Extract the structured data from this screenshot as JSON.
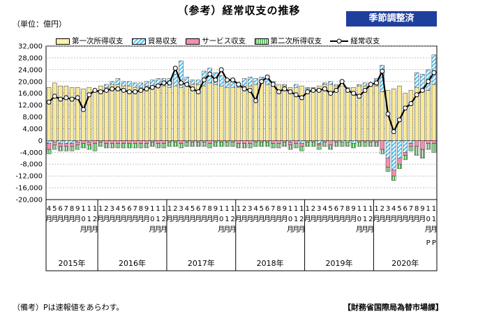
{
  "header": {
    "title": "（参考）経常収支の推移",
    "badge": "季節調整済",
    "unit": "（単位：億円）"
  },
  "footer": {
    "note": "（備考）Pは速報値をあらわす。",
    "source": "【財務省国際局為替市場課】"
  },
  "colors": {
    "primary_income": "#fff2a8",
    "trade": "#4fc3f7",
    "services": "#f48fb1",
    "secondary_income": "#66bb6a",
    "current_account": "#000000",
    "badge": "#1f3f9f"
  },
  "chart_data": {
    "type": "bar",
    "stacked": true,
    "title": "（参考）経常収支の推移",
    "ylabel": "（単位：億円）",
    "ylim": [
      -20000,
      32000
    ],
    "yticks": [
      32000,
      28000,
      24000,
      20000,
      16000,
      12000,
      8000,
      4000,
      0,
      -4000,
      -8000,
      -12000,
      -16000,
      -20000
    ],
    "ytick_labels": [
      "32,000",
      "28,000",
      "24,000",
      "20,000",
      "16,000",
      "12,000",
      "8,000",
      "4,000",
      "0",
      "-4,000",
      "-8,000",
      "-12,000",
      "-16,000",
      "-20,000"
    ],
    "grid": true,
    "legend_position": "top",
    "years": [
      {
        "label": "2015年",
        "months": [
          "4月",
          "5月",
          "6月",
          "7月",
          "8月",
          "9月",
          "10月",
          "11月",
          "12月"
        ]
      },
      {
        "label": "2016年",
        "months": [
          "1月",
          "2月",
          "3月",
          "4月",
          "5月",
          "6月",
          "7月",
          "8月",
          "9月",
          "10月",
          "11月",
          "12月"
        ]
      },
      {
        "label": "2017年",
        "months": [
          "1月",
          "2月",
          "3月",
          "4月",
          "5月",
          "6月",
          "7月",
          "8月",
          "9月",
          "10月",
          "11月",
          "12月"
        ]
      },
      {
        "label": "2018年",
        "months": [
          "1月",
          "2月",
          "3月",
          "4月",
          "5月",
          "6月",
          "7月",
          "8月",
          "9月",
          "10月",
          "11月",
          "12月"
        ]
      },
      {
        "label": "2019年",
        "months": [
          "1月",
          "2月",
          "3月",
          "4月",
          "5月",
          "6月",
          "7月",
          "8月",
          "9月",
          "10月",
          "11月",
          "12月"
        ]
      },
      {
        "label": "2020年",
        "months": [
          "1月",
          "2月",
          "3月",
          "4月",
          "5月",
          "6月",
          "7月",
          "8月",
          "9月",
          "10月",
          "11月"
        ]
      }
    ],
    "preliminary_marks": [
      "P",
      "P"
    ],
    "series": [
      {
        "name": "第一次所得収支",
        "key": "primary",
        "values": [
          18000,
          19500,
          18500,
          18500,
          18000,
          18000,
          17500,
          18000,
          16500,
          18500,
          18000,
          19000,
          19000,
          18500,
          18500,
          18000,
          18000,
          18500,
          18500,
          19000,
          18500,
          18000,
          18500,
          18000,
          18500,
          19000,
          19000,
          18500,
          19500,
          19000,
          18500,
          18000,
          18000,
          18000,
          18500,
          18500,
          19000,
          19500,
          19000,
          18500,
          19000,
          18500,
          18000,
          18000,
          18500,
          17500,
          18000,
          18500,
          19000,
          19000,
          18500,
          18500,
          18000,
          18000,
          18500,
          18500,
          18500,
          18500,
          16500,
          17000,
          17500,
          18500,
          16000,
          17000,
          18000,
          17500,
          17000,
          19000
        ]
      },
      {
        "name": "貿易収支",
        "key": "trade",
        "values": [
          -1000,
          -500,
          -1000,
          -1000,
          -1000,
          -500,
          0,
          -500,
          500,
          0,
          1000,
          1000,
          2000,
          1500,
          1500,
          1500,
          1500,
          1500,
          2000,
          2000,
          2500,
          3000,
          4000,
          9000,
          3000,
          1500,
          1500,
          5000,
          5000,
          4000,
          3500,
          2500,
          3000,
          1500,
          2500,
          3000,
          2000,
          2000,
          3000,
          1500,
          0,
          500,
          -500,
          1000,
          -1000,
          500,
          0,
          -1000,
          500,
          1000,
          500,
          -500,
          -500,
          -1000,
          500,
          1000,
          1000,
          2500,
          9000,
          -6000,
          -10000,
          -6000,
          -4000,
          -1000,
          5000,
          5000,
          7000,
          10000
        ]
      },
      {
        "name": "サービス収支",
        "key": "services",
        "values": [
          -2000,
          -1000,
          -1000,
          -1000,
          -1000,
          -1000,
          -1000,
          -1000,
          -1000,
          -500,
          -1000,
          -1000,
          -1000,
          -1000,
          -1000,
          -1000,
          -1000,
          -1000,
          -500,
          -1000,
          -1000,
          -500,
          -500,
          -1000,
          -500,
          -500,
          -500,
          -500,
          -1000,
          -500,
          -500,
          -500,
          -500,
          -1000,
          -1000,
          -1000,
          -500,
          -500,
          -500,
          -1000,
          -1000,
          -500,
          -1000,
          -1000,
          -1000,
          -500,
          -500,
          -500,
          -500,
          -1500,
          -500,
          0,
          0,
          0,
          -500,
          -500,
          -500,
          -500,
          -3000,
          -3000,
          -2000,
          -2000,
          -1000,
          -1000,
          -2000,
          -3000,
          -1000,
          -1000
        ]
      },
      {
        "name": "第二次所得収支",
        "key": "secondary",
        "values": [
          -1500,
          -1500,
          -1500,
          -1500,
          -1500,
          -1500,
          -1500,
          -1500,
          -2500,
          -1500,
          -1500,
          -1500,
          -1500,
          -1500,
          -1500,
          -1500,
          -1500,
          -1500,
          -1500,
          -1500,
          -1500,
          -1500,
          -1500,
          -1500,
          -1500,
          -1500,
          -1500,
          -1500,
          -1500,
          -1500,
          -1500,
          -1500,
          -1500,
          -1500,
          -1500,
          -1500,
          -1500,
          -1500,
          -1500,
          -1500,
          -1500,
          -1500,
          -1500,
          -1500,
          -1500,
          -1500,
          -1500,
          -1500,
          -1500,
          -1500,
          -1500,
          -1500,
          -1500,
          -1500,
          -1500,
          -1500,
          -1500,
          -1500,
          -1500,
          -1500,
          -1500,
          -1500,
          -1500,
          -1500,
          -3000,
          -3000,
          -2000,
          -3000
        ]
      },
      {
        "name": "経常収支",
        "key": "current",
        "type": "line",
        "values": [
          13000,
          15000,
          14000,
          14500,
          14000,
          14500,
          10500,
          15500,
          17000,
          16500,
          17000,
          17500,
          17500,
          17000,
          16500,
          16500,
          17000,
          17500,
          18000,
          18500,
          19500,
          19500,
          24500,
          19500,
          19000,
          17500,
          16500,
          20500,
          22500,
          20500,
          24000,
          20500,
          20500,
          19000,
          17500,
          17000,
          13500,
          20000,
          21500,
          19000,
          16500,
          17500,
          16500,
          15500,
          14500,
          16500,
          17000,
          17000,
          17500,
          16000,
          17000,
          20000,
          17000,
          16000,
          15000,
          17000,
          19000,
          19500,
          23500,
          9000,
          3000,
          7000,
          11000,
          12500,
          15500,
          17000,
          20000,
          23000
        ]
      }
    ]
  }
}
